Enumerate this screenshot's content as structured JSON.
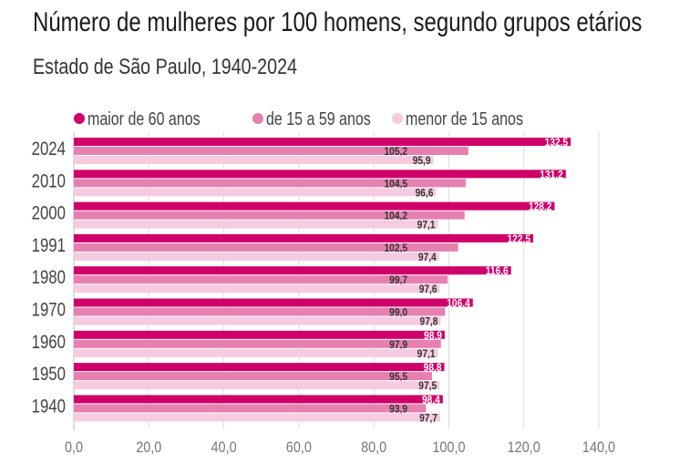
{
  "chart_data": {
    "type": "bar",
    "orientation": "horizontal",
    "title": "Número de mulheres por 100 homens, segundo grupos etários",
    "subtitle": "Estado de São Paulo, 1940-2024",
    "categories": [
      "2024",
      "2010",
      "2000",
      "1991",
      "1980",
      "1970",
      "1960",
      "1950",
      "1940"
    ],
    "series": [
      {
        "name": "maior de 60 anos",
        "color": "#d0006a",
        "values": [
          132.5,
          131.2,
          128.2,
          122.5,
          116.6,
          106.4,
          98.9,
          98.8,
          98.4
        ]
      },
      {
        "name": "de 15 a 59 anos",
        "color": "#e680b1",
        "values": [
          105.2,
          104.5,
          104.2,
          102.5,
          99.7,
          99.0,
          97.9,
          95.5,
          93.9
        ]
      },
      {
        "name": "menor de 15 anos",
        "color": "#f6cbe0",
        "values": [
          95.9,
          96.6,
          97.1,
          97.4,
          97.6,
          97.8,
          97.1,
          97.5,
          97.7
        ]
      }
    ],
    "xlim": [
      0,
      140
    ],
    "xticks": [
      "0,0",
      "20,0",
      "40,0",
      "60,0",
      "80,0",
      "100,0",
      "120,0",
      "140,0"
    ],
    "grid": true,
    "legend": "top"
  }
}
